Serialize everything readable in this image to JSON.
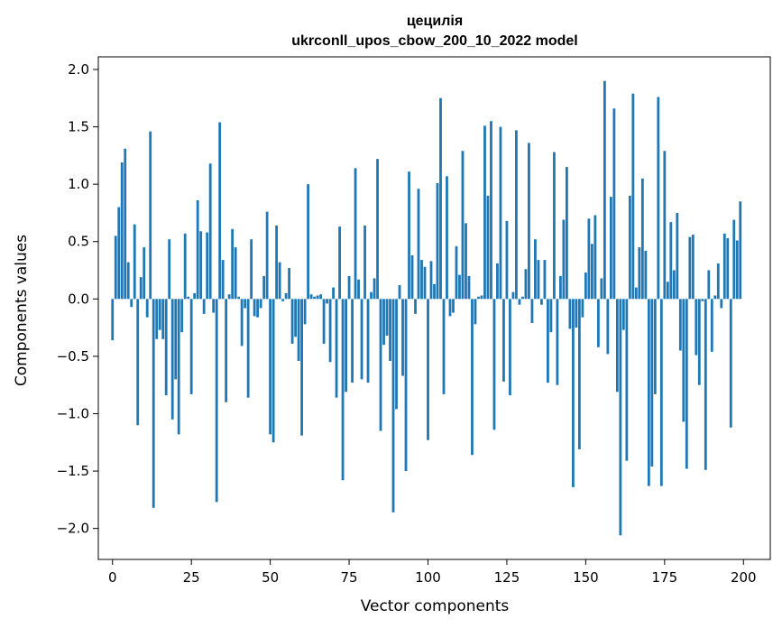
{
  "chart_data": {
    "type": "bar",
    "title": "цецилія",
    "subtitle": "ukrconll_upos_cbow_200_10_2022 model",
    "xlabel": "Vector components",
    "ylabel": "Components values",
    "xlim": [
      -4.5,
      208.5
    ],
    "ylim": [
      -2.27,
      2.11
    ],
    "xticks": [
      0,
      25,
      50,
      75,
      100,
      125,
      150,
      175,
      200
    ],
    "yticks": [
      -2.0,
      -1.5,
      -1.0,
      -0.5,
      0.0,
      0.5,
      1.0,
      1.5,
      2.0
    ],
    "bar_color": "#1f77b4",
    "grid": false,
    "x": [
      0,
      1,
      2,
      3,
      4,
      5,
      6,
      7,
      8,
      9,
      10,
      11,
      12,
      13,
      14,
      15,
      16,
      17,
      18,
      19,
      20,
      21,
      22,
      23,
      24,
      25,
      26,
      27,
      28,
      29,
      30,
      31,
      32,
      33,
      34,
      35,
      36,
      37,
      38,
      39,
      40,
      41,
      42,
      43,
      44,
      45,
      46,
      47,
      48,
      49,
      50,
      51,
      52,
      53,
      54,
      55,
      56,
      57,
      58,
      59,
      60,
      61,
      62,
      63,
      64,
      65,
      66,
      67,
      68,
      69,
      70,
      71,
      72,
      73,
      74,
      75,
      76,
      77,
      78,
      79,
      80,
      81,
      82,
      83,
      84,
      85,
      86,
      87,
      88,
      89,
      90,
      91,
      92,
      93,
      94,
      95,
      96,
      97,
      98,
      99,
      100,
      101,
      102,
      103,
      104,
      105,
      106,
      107,
      108,
      109,
      110,
      111,
      112,
      113,
      114,
      115,
      116,
      117,
      118,
      119,
      120,
      121,
      122,
      123,
      124,
      125,
      126,
      127,
      128,
      129,
      130,
      131,
      132,
      133,
      134,
      135,
      136,
      137,
      138,
      139,
      140,
      141,
      142,
      143,
      144,
      145,
      146,
      147,
      148,
      149,
      150,
      151,
      152,
      153,
      154,
      155,
      156,
      157,
      158,
      159,
      160,
      161,
      162,
      163,
      164,
      165,
      166,
      167,
      168,
      169,
      170,
      171,
      172,
      173,
      174,
      175,
      176,
      177,
      178,
      179,
      180,
      181,
      182,
      183,
      184,
      185,
      186,
      187,
      188,
      189,
      190,
      191,
      192,
      193,
      194,
      195,
      196,
      197,
      198,
      199
    ],
    "values": [
      -0.36,
      0.55,
      0.8,
      1.19,
      1.31,
      0.32,
      -0.07,
      0.65,
      -1.1,
      0.19,
      0.45,
      -0.16,
      1.46,
      -1.82,
      -0.35,
      -0.27,
      -0.35,
      -0.84,
      0.52,
      -1.05,
      -0.7,
      -1.18,
      -0.29,
      0.57,
      0.02,
      -0.83,
      0.05,
      0.86,
      0.59,
      -0.13,
      0.58,
      1.18,
      -0.12,
      -1.77,
      1.54,
      0.34,
      -0.9,
      0.04,
      0.61,
      0.45,
      0.02,
      -0.41,
      -0.08,
      -0.86,
      0.52,
      -0.15,
      -0.16,
      -0.08,
      0.2,
      0.76,
      -1.18,
      -1.25,
      0.64,
      0.32,
      -0.02,
      0.05,
      0.27,
      -0.39,
      -0.33,
      -0.54,
      -1.19,
      -0.22,
      1.0,
      0.04,
      0.02,
      0.03,
      0.04,
      -0.39,
      -0.04,
      -0.55,
      0.1,
      -0.86,
      0.63,
      -1.58,
      -0.81,
      0.2,
      -0.73,
      1.14,
      0.17,
      -0.7,
      0.64,
      -0.73,
      0.06,
      0.18,
      1.22,
      -1.15,
      -0.4,
      -0.32,
      -0.54,
      -1.86,
      -0.96,
      0.12,
      -0.67,
      -1.5,
      1.11,
      0.38,
      -0.13,
      0.96,
      0.34,
      0.28,
      -1.23,
      0.33,
      0.13,
      1.01,
      1.75,
      -0.83,
      1.07,
      -0.15,
      -0.12,
      0.46,
      0.21,
      1.29,
      0.66,
      0.2,
      -1.36,
      -0.22,
      0.02,
      0.03,
      1.51,
      0.9,
      1.55,
      -1.14,
      0.31,
      1.5,
      -0.72,
      0.68,
      -0.84,
      0.06,
      1.47,
      -0.05,
      0.02,
      0.26,
      1.36,
      -0.21,
      0.52,
      0.34,
      -0.05,
      0.34,
      -0.73,
      -0.29,
      1.28,
      -0.75,
      0.2,
      0.69,
      1.15,
      -0.26,
      -1.64,
      -0.25,
      -1.31,
      -0.16,
      0.23,
      0.7,
      0.48,
      0.73,
      -0.42,
      0.18,
      1.9,
      -0.48,
      0.89,
      1.66,
      -0.81,
      -2.06,
      -0.27,
      -1.41,
      0.9,
      1.79,
      0.1,
      0.45,
      1.05,
      0.42,
      -1.63,
      -1.46,
      -0.83,
      1.76,
      -1.63,
      1.29,
      0.15,
      0.67,
      0.25,
      0.75,
      -0.45,
      -1.07,
      -1.48,
      0.54,
      0.56,
      -0.49,
      -0.75,
      -0.02,
      -1.49,
      0.25,
      -0.46,
      0.03,
      0.31,
      -0.08,
      0.57,
      0.53,
      -1.12,
      0.69,
      0.51,
      0.85
    ]
  }
}
